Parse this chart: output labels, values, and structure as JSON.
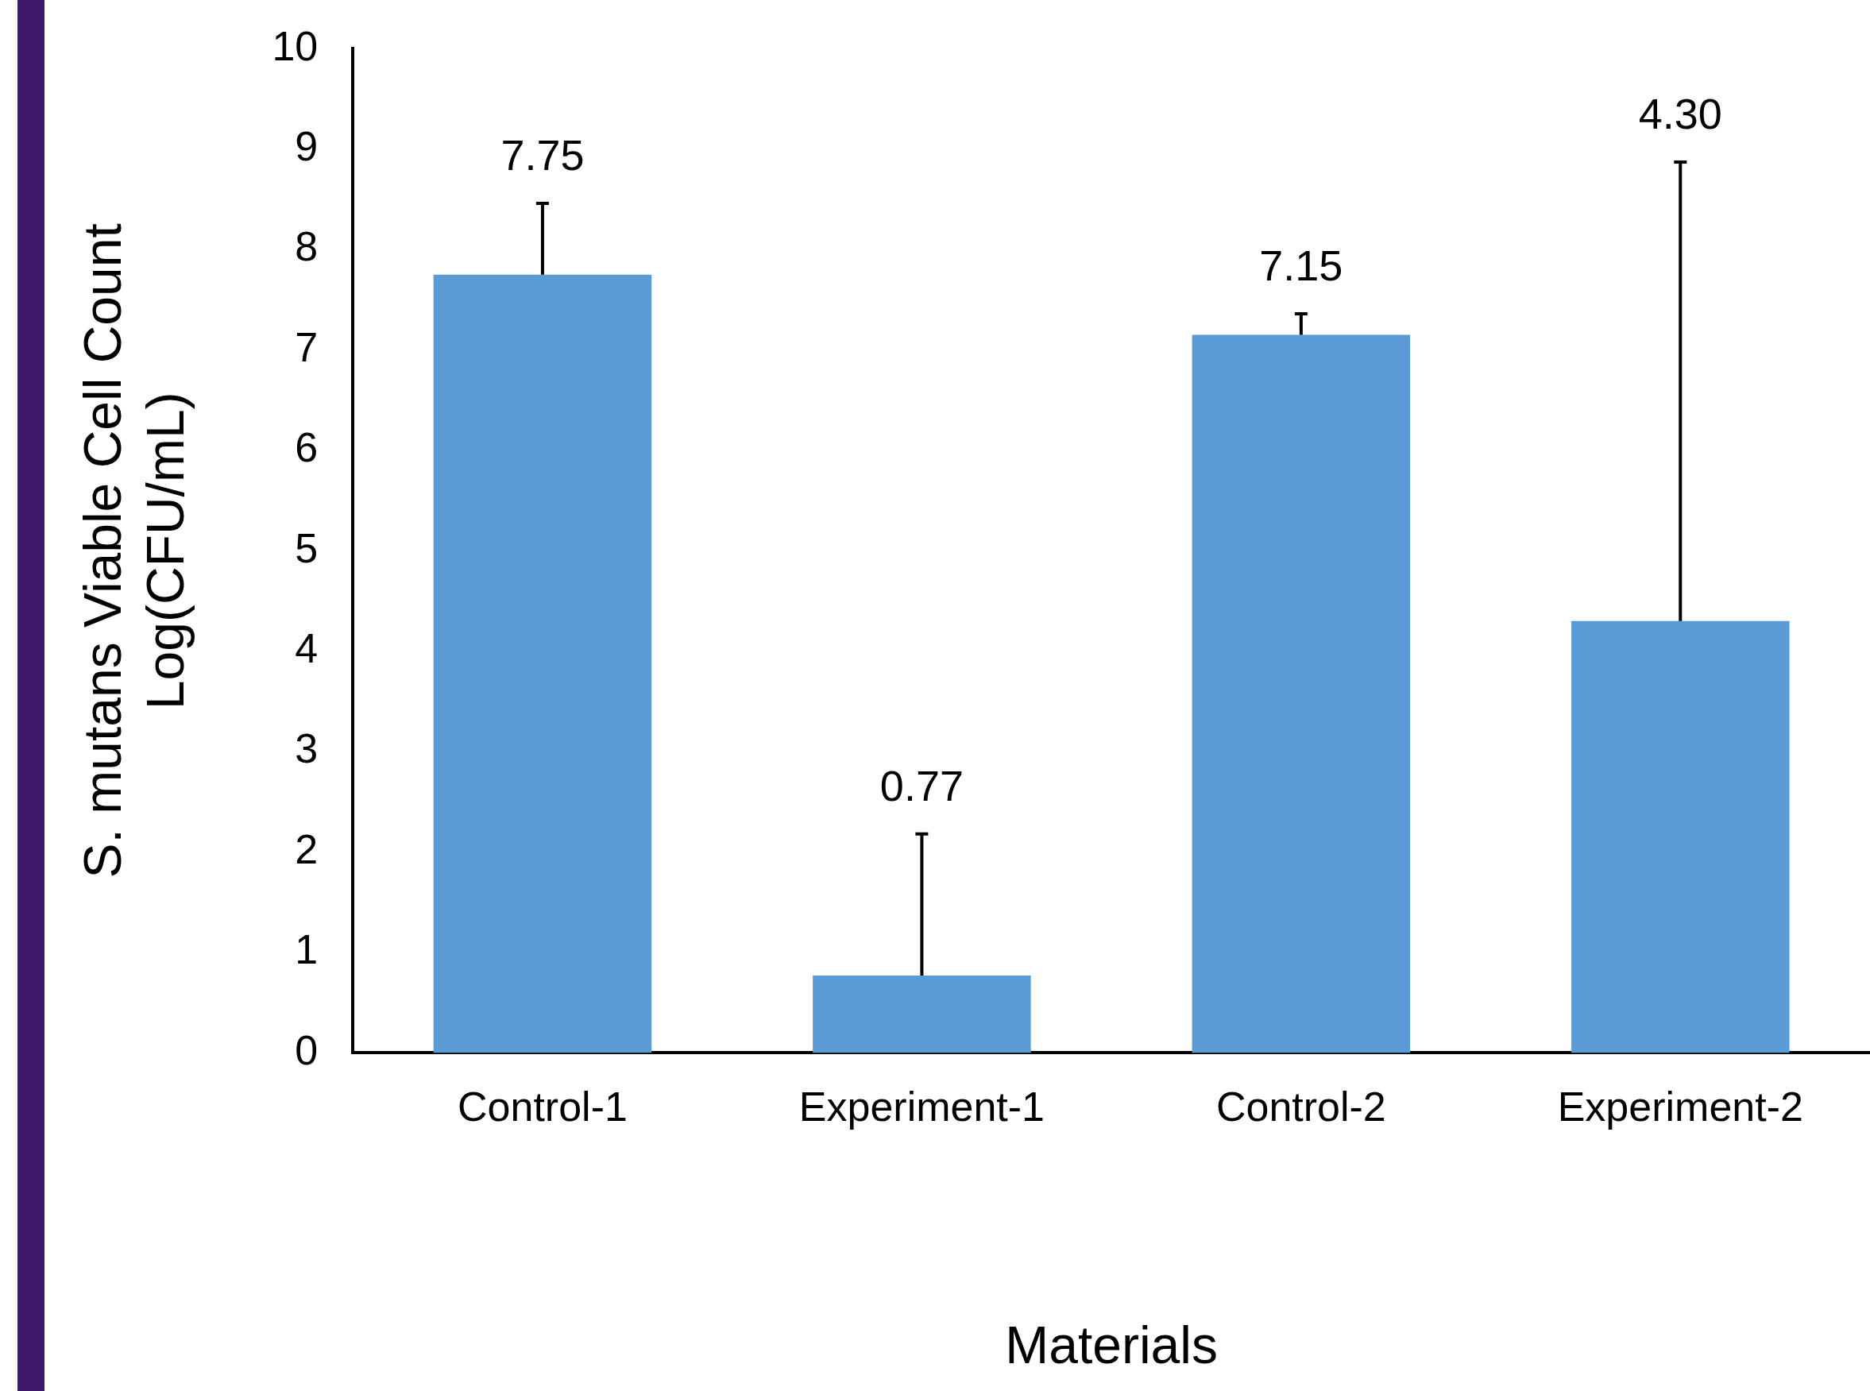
{
  "chart_data": {
    "type": "bar",
    "xlabel": "Materials",
    "ylabel": "S. mutans Viable Cell Count\nLog(CFU/mL)",
    "categories": [
      "Control-1",
      "Experiment-1",
      "Control-2",
      "Experiment-2"
    ],
    "values": [
      7.75,
      0.77,
      7.15,
      4.3
    ],
    "annotations": [
      {
        "text": "7.75",
        "x": "Control-1",
        "y": 8.46
      },
      {
        "text": "0.77",
        "x": "Experiment-1",
        "y": 2.18
      },
      {
        "text": "7.15",
        "x": "Control-2",
        "y": 7.36
      },
      {
        "text": "4.30",
        "x": "Experiment-2",
        "y": 8.87
      }
    ],
    "errors": [
      [
        7.75,
        8.46
      ],
      [
        0.77,
        2.18
      ],
      [
        7.15,
        7.36
      ],
      [
        4.3,
        8.87
      ]
    ],
    "color": "#5b9bd5",
    "ylim": [
      0,
      10
    ],
    "yticks": [
      0,
      1,
      2,
      3,
      4,
      5,
      6,
      7,
      8,
      9,
      10
    ],
    "grid": false,
    "legend": false
  }
}
